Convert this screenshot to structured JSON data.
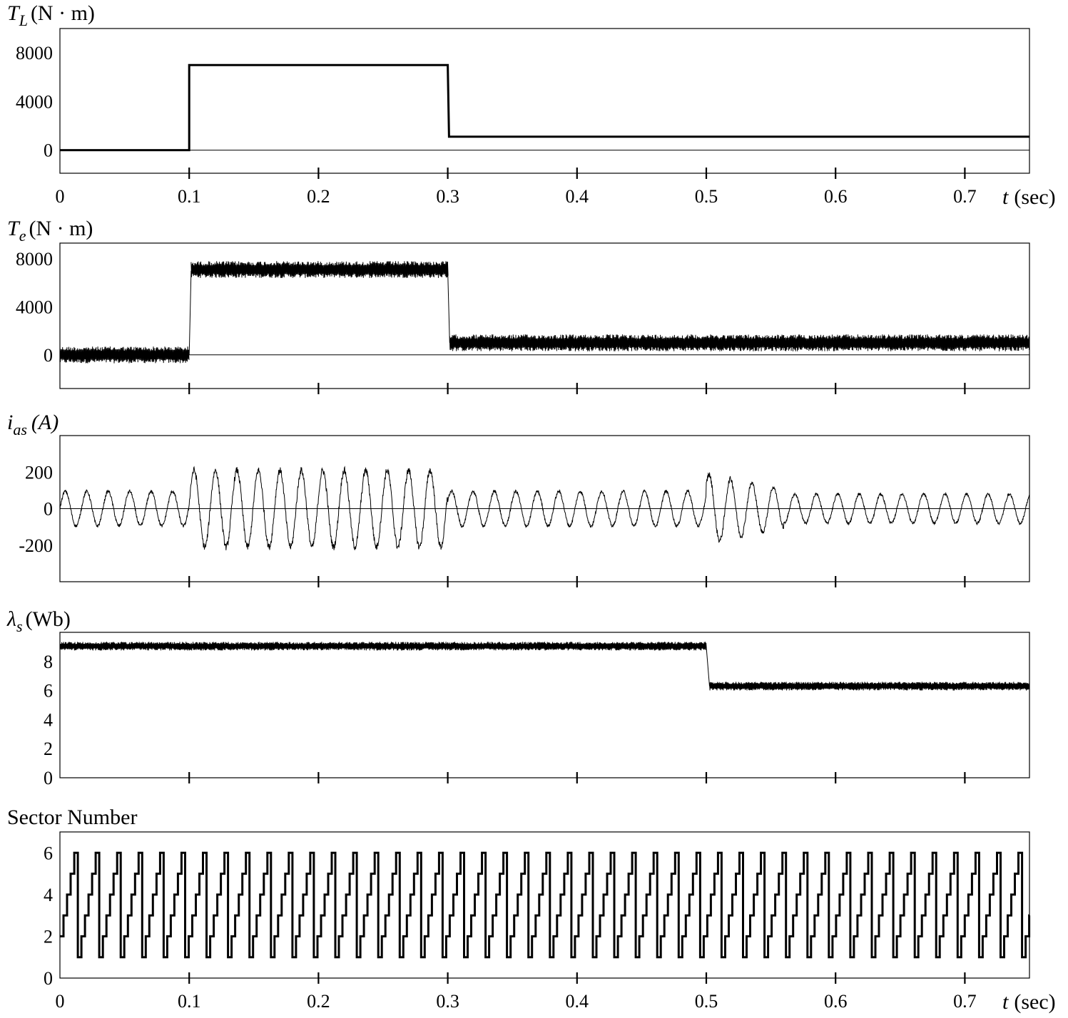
{
  "figure": {
    "x_range": [
      0,
      0.75
    ],
    "x_ticks": [
      0,
      0.1,
      0.2,
      0.3,
      0.4,
      0.5,
      0.6,
      0.7
    ],
    "x_tick_labels": [
      "0",
      "0.1",
      "0.2",
      "0.3",
      "0.4",
      "0.5",
      "0.6",
      "0.7"
    ],
    "x_axis_label": {
      "symbol": "t",
      "unit": "(sec)"
    }
  },
  "chart_data": [
    {
      "type": "line",
      "symbol": "T",
      "subscript": "L",
      "unit": "(N · m)",
      "title": "",
      "ylim": [
        -1900,
        10000
      ],
      "y_ticks": [
        0,
        4000,
        8000
      ],
      "y_tick_labels": [
        "0",
        "4000",
        "8000"
      ],
      "zero_line": true,
      "series": [
        {
          "points": [
            [
              0,
              0
            ],
            [
              0.1,
              0
            ],
            [
              0.1,
              7000
            ],
            [
              0.3,
              7000
            ],
            [
              0.301,
              1100
            ],
            [
              0.75,
              1100
            ]
          ]
        }
      ]
    },
    {
      "type": "line",
      "symbol": "T",
      "subscript": "e",
      "unit": "(N · m)",
      "title": "",
      "ylim": [
        -2800,
        9300
      ],
      "y_ticks": [
        0,
        4000,
        8000
      ],
      "y_tick_labels": [
        "0",
        "4000",
        "8000"
      ],
      "zero_line": true,
      "series": [
        {
          "segments": [
            {
              "t_start": 0.0,
              "t_end": 0.1,
              "low": -700,
              "high": 700
            },
            {
              "t_start": 0.1015,
              "t_end": 0.3,
              "low": 6400,
              "high": 7800
            },
            {
              "t_start": 0.3015,
              "t_end": 0.75,
              "low": 300,
              "high": 1700
            }
          ],
          "steps": [
            [
              0.1,
              0
            ],
            [
              0.1015,
              7000
            ],
            [
              0.3,
              7000
            ],
            [
              0.3015,
              1000
            ]
          ]
        }
      ]
    },
    {
      "type": "line",
      "symbol": "i",
      "subscript": "as",
      "unit": "(A)",
      "title": "",
      "ylim": [
        -400,
        400
      ],
      "y_ticks": [
        -200,
        0,
        200
      ],
      "y_tick_labels": [
        "-200",
        "0",
        "200"
      ],
      "zero_line": true,
      "series": [
        {
          "period": 0.0166,
          "amplitude_segments": [
            {
              "t_start": 0.0,
              "t_end": 0.1,
              "amplitude": 95
            },
            {
              "t_start": 0.1,
              "t_end": 0.3,
              "amplitude": 210
            },
            {
              "t_start": 0.3,
              "t_end": 0.5,
              "amplitude": 95
            },
            {
              "t_start": 0.5,
              "t_end": 0.56,
              "amplitude": 190,
              "decay_to": 105
            },
            {
              "t_start": 0.56,
              "t_end": 0.75,
              "amplitude": 80
            }
          ]
        }
      ]
    },
    {
      "type": "line",
      "symbol": "λ",
      "subscript": "s",
      "unit": "(Wb)",
      "title": "",
      "ylim": [
        0,
        10
      ],
      "y_ticks": [
        0,
        2,
        4,
        6,
        8
      ],
      "y_tick_labels": [
        "0",
        "2",
        "4",
        "6",
        "8"
      ],
      "zero_line": false,
      "series": [
        {
          "segments": [
            {
              "t_start": 0.0,
              "t_end": 0.5,
              "low": 8.75,
              "high": 9.35
            },
            {
              "t_start": 0.5025,
              "t_end": 0.75,
              "low": 6.0,
              "high": 6.6
            }
          ],
          "steps": [
            [
              0.5,
              9.0
            ],
            [
              0.5025,
              6.3
            ]
          ]
        }
      ]
    },
    {
      "type": "line",
      "symbol": "",
      "subscript": "",
      "unit": "",
      "title": "Sector Number",
      "ylim": [
        0,
        7
      ],
      "y_ticks": [
        0,
        2,
        4,
        6
      ],
      "y_tick_labels": [
        "0",
        "2",
        "4",
        "6"
      ],
      "zero_line": false,
      "series": [
        {
          "step_sequence": [
            1,
            2,
            3,
            4,
            5,
            6
          ],
          "period": 0.0166,
          "start_sector": 2
        }
      ]
    }
  ]
}
